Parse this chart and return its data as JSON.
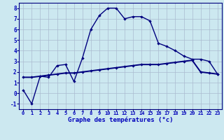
{
  "xlabel": "Graphe des températures (°c)",
  "xlim": [
    -0.5,
    23.5
  ],
  "ylim": [
    -1.5,
    8.5
  ],
  "yticks": [
    -1,
    0,
    1,
    2,
    3,
    4,
    5,
    6,
    7,
    8
  ],
  "xticks": [
    0,
    1,
    2,
    3,
    4,
    5,
    6,
    7,
    8,
    9,
    10,
    11,
    12,
    13,
    14,
    15,
    16,
    17,
    18,
    19,
    20,
    21,
    22,
    23
  ],
  "line1_x": [
    0,
    1,
    2,
    3,
    4,
    5,
    6,
    7,
    8,
    9,
    10,
    11,
    12,
    13,
    14,
    15,
    16,
    17,
    18,
    19,
    20,
    21,
    22,
    23
  ],
  "line1_y": [
    0.3,
    -1.0,
    1.6,
    1.5,
    2.6,
    2.7,
    1.1,
    3.3,
    6.0,
    7.3,
    8.0,
    8.0,
    7.0,
    7.2,
    7.2,
    6.8,
    4.7,
    4.4,
    4.0,
    3.5,
    3.2,
    3.2,
    3.0,
    1.8
  ],
  "line2_x": [
    0,
    1,
    2,
    3,
    4,
    5,
    6,
    7,
    8,
    9,
    10,
    11,
    12,
    13,
    14,
    15,
    16,
    17,
    18,
    19,
    20,
    21,
    22,
    23
  ],
  "line2_y": [
    1.5,
    1.5,
    1.6,
    1.7,
    1.8,
    1.9,
    1.9,
    2.0,
    2.1,
    2.2,
    2.3,
    2.4,
    2.5,
    2.6,
    2.7,
    2.7,
    2.7,
    2.8,
    2.9,
    3.0,
    3.1,
    2.0,
    1.9,
    1.8
  ],
  "bg_color": "#cce8f0",
  "line_color": "#00007f",
  "grid_color": "#aabbd0",
  "xlabel_color": "#0000bb",
  "tick_color": "#0000bb",
  "label_fontsize": 5.0,
  "xlabel_fontsize": 6.5,
  "marker": "D",
  "markersize": 2.2,
  "linewidth1": 1.0,
  "linewidth2": 1.4
}
